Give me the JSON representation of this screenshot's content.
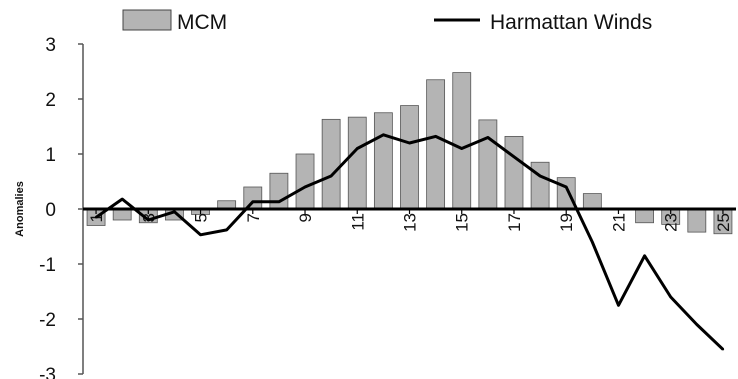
{
  "chart_data": {
    "type": "bar",
    "ylabel": "Anomalies",
    "ylim": [
      -3,
      3
    ],
    "yticks": [
      "3",
      "2",
      "1",
      "0",
      "-1",
      "-2",
      "-3"
    ],
    "categories": [
      "1",
      "2",
      "3",
      "4",
      "5",
      "6",
      "7",
      "8",
      "9",
      "10",
      "11",
      "12",
      "13",
      "14",
      "15",
      "16",
      "17",
      "18",
      "19",
      "20",
      "21",
      "22",
      "23",
      "24",
      "25"
    ],
    "x_tick_labels": [
      "1",
      "3",
      "5",
      "7",
      "9",
      "11",
      "13",
      "15",
      "17",
      "19",
      "21",
      "23",
      "25"
    ],
    "legend_position": "top",
    "series": [
      {
        "name": "MCM",
        "type": "bar",
        "color": "#b4b4b4",
        "values": [
          -0.3,
          -0.2,
          -0.25,
          -0.2,
          -0.1,
          0.15,
          0.4,
          0.65,
          1.0,
          1.63,
          1.67,
          1.75,
          1.88,
          2.35,
          2.48,
          1.62,
          1.32,
          0.85,
          0.57,
          0.28,
          0.0,
          -0.25,
          -0.28,
          -0.42,
          -0.45
        ]
      },
      {
        "name": "Harmattan Winds",
        "type": "line",
        "color": "#000000",
        "values": [
          -0.15,
          0.18,
          -0.2,
          -0.05,
          -0.47,
          -0.38,
          0.13,
          0.13,
          0.4,
          0.6,
          1.1,
          1.35,
          1.2,
          1.32,
          1.1,
          1.3,
          0.95,
          0.6,
          0.4,
          -0.6,
          -1.75,
          -0.85,
          -1.6,
          -2.1,
          -2.55
        ]
      }
    ]
  }
}
